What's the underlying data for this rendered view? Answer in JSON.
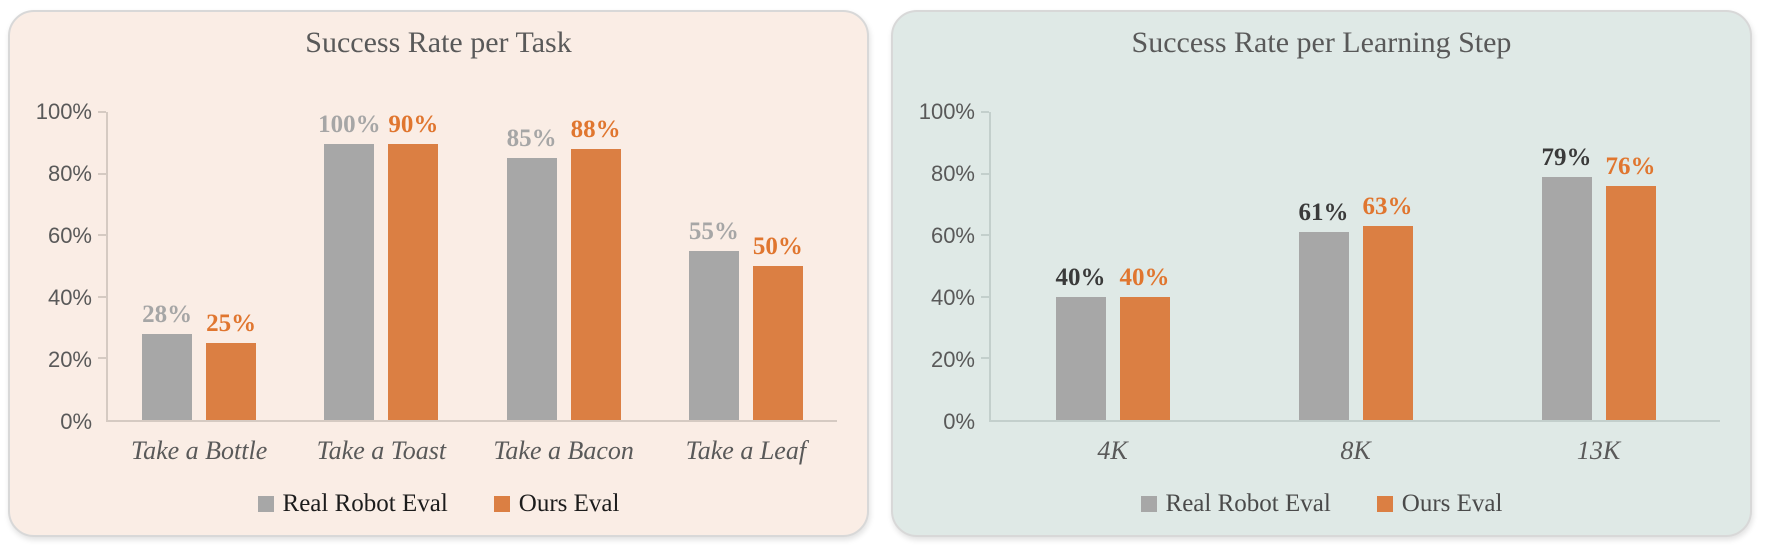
{
  "chart_data": [
    {
      "type": "bar",
      "title": "Success Rate per Task",
      "categories": [
        "Take a Bottle",
        "Take a Toast",
        "Take a Bacon",
        "Take a Leaf"
      ],
      "series": [
        {
          "name": "Real Robot Eval",
          "values": [
            28,
            100,
            85,
            55
          ],
          "color": "#A7A7A7",
          "label_color": "#A6A6A6"
        },
        {
          "name": "Ours Eval",
          "values": [
            25,
            90,
            88,
            50
          ],
          "color": "#DB7F43",
          "label_color": "#E0762F"
        }
      ],
      "value_suffix": "%",
      "ylim": [
        0,
        100
      ],
      "yticks": [
        "0%",
        "20%",
        "40%",
        "60%",
        "80%",
        "100%"
      ],
      "grid": false,
      "legend_position": "bottom",
      "xlabel": "",
      "ylabel": "",
      "background": "#FAEDE5",
      "axis_color": "#D5CAC2",
      "title_color": "#595959",
      "tick_color": "#595959",
      "xtick_color": "#595959",
      "legend_text_color": "#1C1C1C"
    },
    {
      "type": "bar",
      "title": "Success Rate per Learning Step",
      "categories": [
        "4K",
        "8K",
        "13K"
      ],
      "series": [
        {
          "name": "Real Robot Eval",
          "values": [
            40,
            61,
            79
          ],
          "color": "#A7A7A7",
          "label_color": "#3A3A3A"
        },
        {
          "name": "Ours Eval",
          "values": [
            40,
            63,
            76
          ],
          "color": "#DB7F43",
          "label_color": "#E0762F"
        }
      ],
      "value_suffix": "%",
      "ylim": [
        0,
        100
      ],
      "yticks": [
        "0%",
        "20%",
        "40%",
        "60%",
        "80%",
        "100%"
      ],
      "grid": false,
      "legend_position": "bottom",
      "xlabel": "",
      "ylabel": "",
      "background": "#DFE9E6",
      "axis_color": "#C3CFCC",
      "title_color": "#595959",
      "tick_color": "#595959",
      "xtick_color": "#595959",
      "legend_text_color": "#4A4A4A"
    }
  ]
}
